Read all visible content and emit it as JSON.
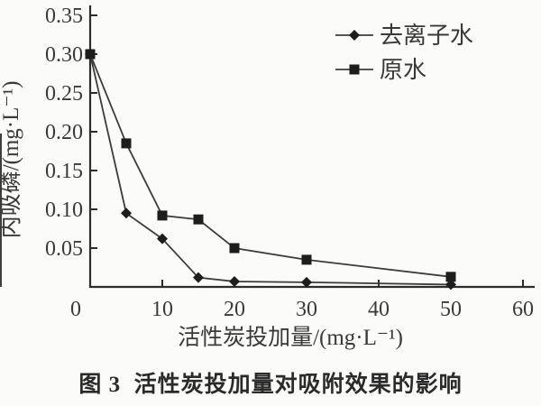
{
  "figure": {
    "caption": "图 3  活性炭投加量对吸附效果的影响"
  },
  "chart_data": {
    "type": "line",
    "title": "图 3 活性炭投加量对吸附效果的影响",
    "xlabel": "活性炭投加量/(mg·L⁻¹)",
    "ylabel": "内吸磷/(mg·L⁻¹)",
    "xlim": [
      0,
      60
    ],
    "ylim": [
      0,
      0.35
    ],
    "xticks": [
      0,
      10,
      20,
      30,
      40,
      50,
      60
    ],
    "yticks": [
      0.05,
      0.1,
      0.15,
      0.2,
      0.25,
      0.3,
      0.35
    ],
    "grid": false,
    "legend_position": "top-right",
    "x": [
      0,
      5,
      10,
      15,
      20,
      30,
      50
    ],
    "series": [
      {
        "name": "去离子水",
        "marker": "diamond",
        "values": [
          0.3,
          0.095,
          0.062,
          0.012,
          0.007,
          0.006,
          0.003
        ]
      },
      {
        "name": "原水",
        "marker": "square",
        "values": [
          0.3,
          0.185,
          0.092,
          0.087,
          0.05,
          0.035,
          0.013
        ]
      }
    ],
    "colors": {
      "line": "#3c3c3c",
      "axis": "#2d2d2d",
      "marker": "#1d1d1d",
      "text": "#3a3a3a"
    }
  }
}
